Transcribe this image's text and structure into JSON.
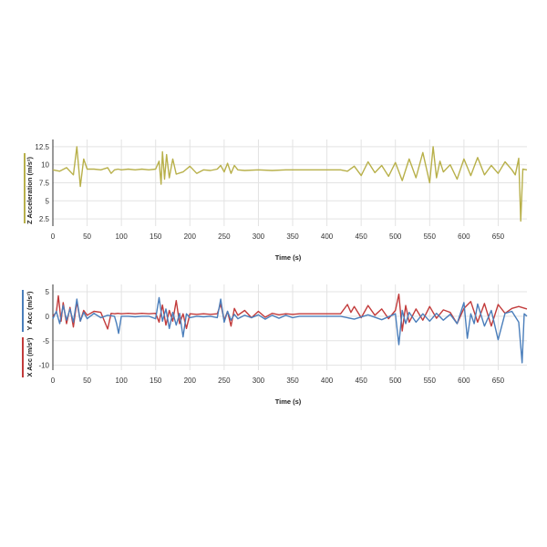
{
  "chart_data": [
    {
      "type": "line",
      "xlabel": "Time (s)",
      "ylabel": "Z Acceleration (m/s²)",
      "xlim": [
        0,
        692
      ],
      "ylim": [
        1.5,
        13.5
      ],
      "xticks": [
        0,
        50,
        100,
        150,
        200,
        250,
        300,
        350,
        400,
        450,
        500,
        550,
        600,
        650
      ],
      "yticks": [
        2.5,
        5,
        7.5,
        10,
        12.5
      ],
      "grid": true,
      "series": [
        {
          "name": "",
          "color": "#b8b04a",
          "x": [
            0,
            10,
            20,
            30,
            35,
            40,
            45,
            50,
            60,
            70,
            80,
            85,
            90,
            95,
            100,
            110,
            120,
            130,
            140,
            150,
            155,
            158,
            160,
            163,
            166,
            170,
            175,
            180,
            190,
            200,
            210,
            220,
            230,
            240,
            245,
            250,
            255,
            260,
            265,
            270,
            280,
            300,
            320,
            340,
            350,
            360,
            380,
            400,
            420,
            430,
            440,
            450,
            460,
            470,
            480,
            490,
            500,
            510,
            520,
            530,
            540,
            550,
            555,
            560,
            565,
            570,
            580,
            590,
            600,
            610,
            620,
            630,
            640,
            650,
            660,
            670,
            675,
            680,
            683,
            686,
            692
          ],
          "y": [
            9.3,
            9.1,
            9.6,
            8.6,
            12.5,
            7.0,
            10.8,
            9.4,
            9.4,
            9.3,
            9.6,
            8.8,
            9.3,
            9.4,
            9.3,
            9.4,
            9.3,
            9.4,
            9.3,
            9.4,
            10.5,
            7.3,
            11.8,
            8.0,
            11.4,
            8.2,
            10.8,
            8.7,
            9.0,
            9.8,
            8.8,
            9.3,
            9.2,
            9.4,
            9.9,
            9.0,
            10.2,
            8.8,
            9.9,
            9.3,
            9.2,
            9.3,
            9.2,
            9.3,
            9.3,
            9.3,
            9.3,
            9.3,
            9.3,
            9.1,
            9.8,
            8.5,
            10.4,
            8.9,
            9.9,
            8.4,
            10.3,
            7.8,
            10.8,
            8.2,
            11.7,
            7.5,
            12.5,
            8.2,
            10.5,
            9.0,
            10.0,
            8.0,
            10.8,
            8.5,
            11.0,
            8.6,
            9.9,
            8.8,
            10.4,
            9.3,
            8.6,
            10.9,
            2.2,
            9.4,
            9.3
          ]
        }
      ]
    },
    {
      "type": "line",
      "xlabel": "Time (s)",
      "ylabel": "X Acc (m/s²)",
      "ylabel2": "Y Acc (m/s²)",
      "xlim": [
        0,
        692
      ],
      "ylim": [
        -11,
        6.5
      ],
      "xticks": [
        0,
        50,
        100,
        150,
        200,
        250,
        300,
        350,
        400,
        450,
        500,
        550,
        600,
        650
      ],
      "yticks": [
        -10,
        -5,
        0,
        5
      ],
      "grid": true,
      "series": [
        {
          "name": "",
          "color": "#c23b3b",
          "x": [
            0,
            5,
            8,
            12,
            15,
            20,
            25,
            30,
            35,
            40,
            45,
            50,
            60,
            70,
            80,
            85,
            90,
            95,
            100,
            110,
            120,
            130,
            140,
            150,
            155,
            160,
            165,
            170,
            175,
            180,
            185,
            190,
            195,
            200,
            210,
            220,
            230,
            240,
            245,
            250,
            255,
            260,
            265,
            270,
            280,
            290,
            300,
            310,
            320,
            330,
            340,
            350,
            360,
            380,
            400,
            420,
            430,
            435,
            440,
            450,
            460,
            470,
            480,
            490,
            500,
            505,
            510,
            515,
            520,
            530,
            540,
            550,
            560,
            570,
            580,
            590,
            600,
            610,
            620,
            630,
            640,
            650,
            660,
            670,
            680,
            692
          ],
          "y": [
            0.0,
            0.8,
            4.2,
            -1.0,
            2.8,
            -1.5,
            1.8,
            -2.2,
            3.0,
            -1.0,
            1.2,
            0.2,
            1.0,
            0.8,
            -2.6,
            0.6,
            0.5,
            0.6,
            0.5,
            0.6,
            0.5,
            0.6,
            0.5,
            0.6,
            -1.2,
            2.3,
            -1.8,
            1.2,
            -1.0,
            3.2,
            -1.5,
            0.5,
            -2.5,
            0.5,
            0.4,
            0.5,
            0.4,
            0.5,
            2.5,
            -0.8,
            1.0,
            -2.0,
            1.6,
            0.2,
            1.2,
            -0.3,
            1.0,
            -0.2,
            0.6,
            0.3,
            0.5,
            0.4,
            0.5,
            0.5,
            0.5,
            0.5,
            2.4,
            0.8,
            2.0,
            -0.3,
            2.2,
            0.2,
            1.5,
            -0.5,
            1.2,
            4.5,
            -3.0,
            2.2,
            -1.2,
            1.5,
            -0.8,
            2.0,
            -0.4,
            1.3,
            0.8,
            -1.5,
            1.6,
            3.0,
            -1.2,
            2.6,
            -2.0,
            2.4,
            0.6,
            1.6,
            2.0,
            1.5
          ]
        },
        {
          "name": "",
          "color": "#4a7ebb",
          "x": [
            0,
            5,
            10,
            15,
            20,
            25,
            30,
            35,
            40,
            45,
            50,
            60,
            70,
            80,
            90,
            93,
            96,
            100,
            110,
            120,
            130,
            140,
            150,
            155,
            160,
            165,
            170,
            175,
            180,
            185,
            190,
            195,
            200,
            210,
            220,
            230,
            240,
            245,
            250,
            255,
            260,
            265,
            270,
            280,
            290,
            300,
            310,
            320,
            330,
            340,
            350,
            360,
            380,
            400,
            420,
            440,
            460,
            480,
            500,
            505,
            510,
            515,
            520,
            530,
            540,
            550,
            560,
            570,
            580,
            590,
            600,
            605,
            610,
            615,
            620,
            630,
            640,
            650,
            660,
            670,
            680,
            685,
            688,
            692
          ],
          "y": [
            -0.5,
            1.0,
            -1.5,
            2.2,
            -0.8,
            1.5,
            -1.2,
            3.5,
            -1.0,
            0.8,
            -0.5,
            0.6,
            -0.3,
            0.2,
            0.0,
            -1.5,
            -3.5,
            0.0,
            0.0,
            -0.1,
            0.0,
            0.0,
            -0.5,
            3.8,
            -1.0,
            1.5,
            -2.5,
            0.8,
            -1.8,
            0.6,
            -4.2,
            0.5,
            -0.3,
            0.0,
            -0.1,
            0.0,
            -0.3,
            3.5,
            -1.2,
            1.0,
            -0.8,
            0.4,
            -0.5,
            0.2,
            -0.3,
            0.3,
            -0.6,
            0.2,
            -0.4,
            0.2,
            -0.3,
            0.0,
            0.0,
            0.0,
            0.0,
            -0.6,
            0.3,
            -0.7,
            0.5,
            -5.8,
            1.2,
            -1.5,
            0.8,
            -1.2,
            0.5,
            -1.0,
            0.6,
            -0.8,
            0.4,
            -1.5,
            2.8,
            -4.5,
            0.5,
            -1.5,
            2.5,
            -2.0,
            1.2,
            -4.8,
            0.6,
            1.0,
            -1.2,
            -9.5,
            0.5,
            0.0
          ]
        }
      ]
    }
  ]
}
